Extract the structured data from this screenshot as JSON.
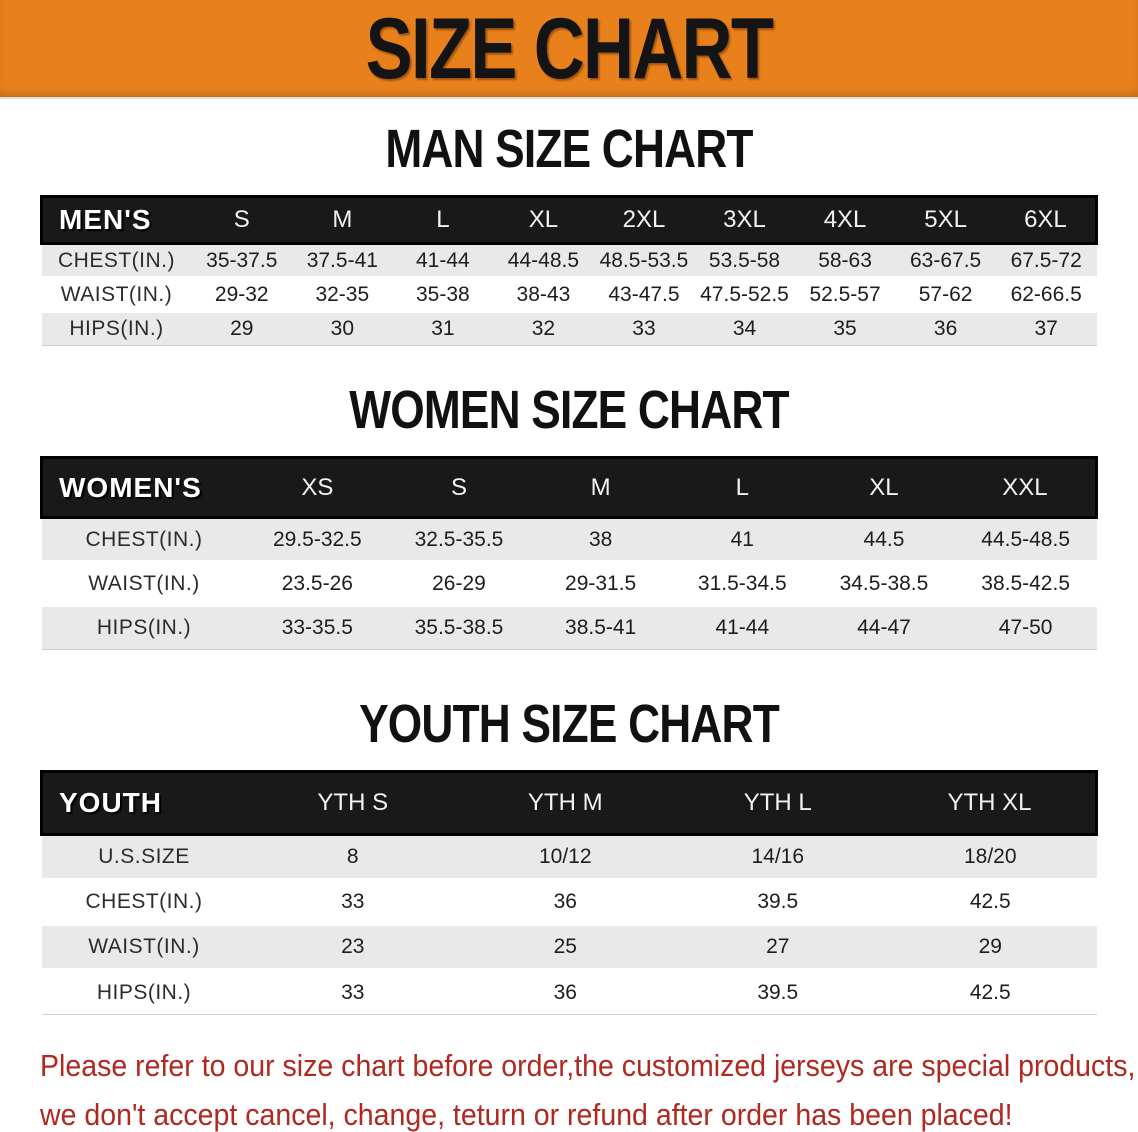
{
  "banner": {
    "title": "SIZE CHART"
  },
  "colors": {
    "banner_bg": "#E8811C",
    "table_header_bg": "#191919",
    "row_stripe": "#E9E9E9",
    "footer_text": "#B0281F",
    "heading_text": "#111111"
  },
  "chart_data": [
    {
      "type": "table",
      "title": "MAN SIZE CHART",
      "row_header": "MEN'S",
      "columns": [
        "S",
        "M",
        "L",
        "XL",
        "2XL",
        "3XL",
        "4XL",
        "5XL",
        "6XL"
      ],
      "rows": [
        {
          "label": "CHEST(IN.)",
          "values": [
            "35-37.5",
            "37.5-41",
            "41-44",
            "44-48.5",
            "48.5-53.5",
            "53.5-58",
            "58-63",
            "63-67.5",
            "67.5-72"
          ]
        },
        {
          "label": "WAIST(IN.)",
          "values": [
            "29-32",
            "32-35",
            "35-38",
            "38-43",
            "43-47.5",
            "47.5-52.5",
            "52.5-57",
            "57-62",
            "62-66.5"
          ]
        },
        {
          "label": "HIPS(IN.)",
          "values": [
            "29",
            "30",
            "31",
            "32",
            "33",
            "34",
            "35",
            "36",
            "37"
          ]
        }
      ]
    },
    {
      "type": "table",
      "title": "WOMEN SIZE CHART",
      "row_header": "WOMEN'S",
      "columns": [
        "XS",
        "S",
        "M",
        "L",
        "XL",
        "XXL"
      ],
      "rows": [
        {
          "label": "CHEST(IN.)",
          "values": [
            "29.5-32.5",
            "32.5-35.5",
            "38",
            "41",
            "44.5",
            "44.5-48.5"
          ]
        },
        {
          "label": "WAIST(IN.)",
          "values": [
            "23.5-26",
            "26-29",
            "29-31.5",
            "31.5-34.5",
            "34.5-38.5",
            "38.5-42.5"
          ]
        },
        {
          "label": "HIPS(IN.)",
          "values": [
            "33-35.5",
            "35.5-38.5",
            "38.5-41",
            "41-44",
            "44-47",
            "47-50"
          ]
        }
      ]
    },
    {
      "type": "table",
      "title": "YOUTH SIZE CHART",
      "row_header": "YOUTH",
      "columns": [
        "YTH S",
        "YTH M",
        "YTH L",
        "YTH XL"
      ],
      "rows": [
        {
          "label": "U.S.SIZE",
          "values": [
            "8",
            "10/12",
            "14/16",
            "18/20"
          ]
        },
        {
          "label": "CHEST(IN.)",
          "values": [
            "33",
            "36",
            "39.5",
            "42.5"
          ]
        },
        {
          "label": "WAIST(IN.)",
          "values": [
            "23",
            "25",
            "27",
            "29"
          ]
        },
        {
          "label": "HIPS(IN.)",
          "values": [
            "33",
            "36",
            "39.5",
            "42.5"
          ]
        }
      ]
    }
  ],
  "footer": {
    "line1": "Please refer to our size chart before order,the customized jerseys are special products,",
    "line2": "we don't accept cancel, change, teturn or refund after order has been placed!"
  }
}
